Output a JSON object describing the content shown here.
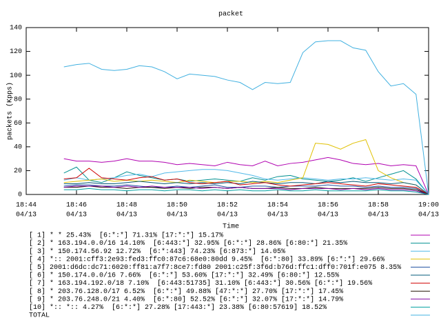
{
  "chart_data": {
    "type": "line",
    "title": "packet",
    "x_label": "Time",
    "y_label": "packets (Kpps)",
    "xlim": [
      1124,
      1140
    ],
    "ylim": [
      0,
      140
    ],
    "xticks": [
      {
        "value": 1124,
        "label": [
          "18:44",
          "04/13"
        ]
      },
      {
        "value": 1126,
        "label": [
          "18:46",
          "04/13"
        ]
      },
      {
        "value": 1128,
        "label": [
          "18:48",
          "04/13"
        ]
      },
      {
        "value": 1130,
        "label": [
          "18:50",
          "04/13"
        ]
      },
      {
        "value": 1132,
        "label": [
          "18:52",
          "04/13"
        ]
      },
      {
        "value": 1134,
        "label": [
          "18:54",
          "04/13"
        ]
      },
      {
        "value": 1136,
        "label": [
          "18:56",
          "04/13"
        ]
      },
      {
        "value": 1138,
        "label": [
          "18:58",
          "04/13"
        ]
      },
      {
        "value": 1140,
        "label": [
          "19:00",
          "04/13"
        ]
      }
    ],
    "yticks": [
      0,
      20,
      40,
      60,
      80,
      100,
      120,
      140
    ],
    "grid": false,
    "x": [
      1125.5,
      1126,
      1126.5,
      1127,
      1127.5,
      1128,
      1128.5,
      1129,
      1129.5,
      1130,
      1130.5,
      1131,
      1131.5,
      1132,
      1132.5,
      1133,
      1133.5,
      1134,
      1134.5,
      1135,
      1135.5,
      1136,
      1136.5,
      1137,
      1137.5,
      1138,
      1138.5,
      1139,
      1139.5,
      1140
    ],
    "series": [
      {
        "name": "[ 1] * * 25.43%  [6:*:*] 71.31% [17:*:*] 15.17%",
        "color": "#b000b0",
        "values": [
          30,
          28,
          28,
          27,
          28,
          30,
          28,
          28,
          27,
          25,
          26,
          25,
          24,
          27,
          25,
          24,
          28,
          24,
          26,
          27,
          29,
          31,
          29,
          26,
          25,
          26,
          24,
          25,
          24,
          0
        ]
      },
      {
        "name": "[ 2] * 163.194.0.0/16 14.10%  [6:443:*] 32.95% [6:*:*] 28.86% [6:80:*] 21.35%",
        "color": "#009090",
        "values": [
          18,
          23,
          12,
          10,
          14,
          19,
          16,
          14,
          12,
          13,
          11,
          12,
          13,
          12,
          11,
          14,
          12,
          15,
          16,
          13,
          12,
          11,
          12,
          14,
          11,
          14,
          17,
          20,
          13,
          0
        ]
      },
      {
        "name": "[ 3] * 150.174.56.92 12.72%  [6:*:443] 74.23% [6:873:*] 14.05%",
        "color": "#50b8e8",
        "values": [
          12,
          14,
          12,
          13,
          14,
          16,
          17,
          15,
          18,
          19,
          20,
          21,
          21,
          20,
          18,
          16,
          13,
          12,
          13,
          14,
          13,
          12,
          13,
          13,
          14,
          13,
          12,
          13,
          12,
          0
        ]
      },
      {
        "name": "[ 4] *:: 2001:cff3:2e93:fed3:ffc0:87c6:68e0:80dd 9.45%  [6:*:80] 33.89% [6:*:*] 29.66%",
        "color": "#e0c000",
        "values": [
          10,
          11,
          12,
          13,
          11,
          12,
          11,
          12,
          11,
          10,
          12,
          11,
          10,
          11,
          11,
          10,
          11,
          10,
          12,
          14,
          43,
          42,
          38,
          43,
          46,
          20,
          14,
          10,
          8,
          0
        ]
      },
      {
        "name": "[ 5] 2001:d6dc:dc71:6020:ff81:a7f7:8ce7:fd80 2001:c25f:3f6d:b76d:ffc1:dff0:701f:e075 8.35%",
        "color": "#2050a0",
        "values": [
          7,
          8,
          8,
          7,
          7,
          8,
          7,
          6,
          6,
          7,
          6,
          7,
          8,
          6,
          6,
          7,
          7,
          6,
          7,
          7,
          7,
          8,
          7,
          7,
          6,
          7,
          6,
          6,
          5,
          0
        ]
      },
      {
        "name": "[ 6] * 150.174.0.0/16 7.66%  [6:*:*] 53.60% [17:*:*] 32.49% [6:80:*] 12.55%",
        "color": "#005878",
        "values": [
          9,
          9,
          10,
          9,
          9,
          10,
          11,
          10,
          9,
          10,
          9,
          10,
          9,
          10,
          9,
          11,
          10,
          9,
          10,
          10,
          9,
          11,
          10,
          11,
          10,
          10,
          9,
          10,
          8,
          0
        ]
      },
      {
        "name": "[ 7] * 163.194.192.0/18 7.10%  [6:443:51735] 31.10% [6:443:*] 30.56% [6:*:*] 19.56%",
        "color": "#d00000",
        "values": [
          13,
          14,
          22,
          14,
          13,
          12,
          14,
          15,
          12,
          13,
          10,
          9,
          10,
          11,
          8,
          9,
          10,
          8,
          7,
          8,
          9,
          10,
          9,
          8,
          7,
          9,
          8,
          7,
          6,
          0
        ]
      },
      {
        "name": "[ 8] * 203.76.128.0/17 6.52%  [6:*:*] 49.88% [47:*:*] 27.70% [17:*:*] 17.45%",
        "color": "#201000",
        "values": [
          6,
          6,
          7,
          6,
          6,
          5,
          6,
          6,
          5,
          6,
          5,
          6,
          6,
          5,
          6,
          5,
          5,
          6,
          5,
          5,
          6,
          5,
          5,
          5,
          5,
          6,
          5,
          5,
          4,
          0
        ]
      },
      {
        "name": "[ 9] * 203.76.248.0/21 4.40%  [6:*:80] 52.52% [6:*:*] 32.07% [17:*:*] 14.79%",
        "color": "#8000a0",
        "values": [
          6,
          7,
          7,
          7,
          6,
          7,
          6,
          7,
          6,
          6,
          6,
          5,
          6,
          5,
          6,
          5,
          5,
          5,
          4,
          5,
          5,
          5,
          4,
          5,
          4,
          5,
          4,
          4,
          3,
          0
        ]
      },
      {
        "name": "[10] *:: *:: 4.27%  [6:*:*] 27.28% [17:443:*] 23.38% [6:80:57619] 18.52%",
        "color": "#00a0a0",
        "values": [
          4,
          4,
          5,
          4,
          4,
          3,
          4,
          4,
          3,
          4,
          4,
          3,
          4,
          3,
          4,
          3,
          3,
          4,
          3,
          3,
          4,
          3,
          3,
          3,
          3,
          4,
          3,
          3,
          2,
          0
        ]
      },
      {
        "name": "TOTAL",
        "color": "#40b0e0",
        "values": [
          107,
          109,
          110,
          105,
          104,
          105,
          108,
          107,
          103,
          97,
          101,
          100,
          99,
          96,
          94,
          88,
          94,
          93,
          94,
          119,
          128,
          129,
          129,
          123,
          121,
          103,
          91,
          93,
          84,
          0
        ]
      }
    ]
  }
}
